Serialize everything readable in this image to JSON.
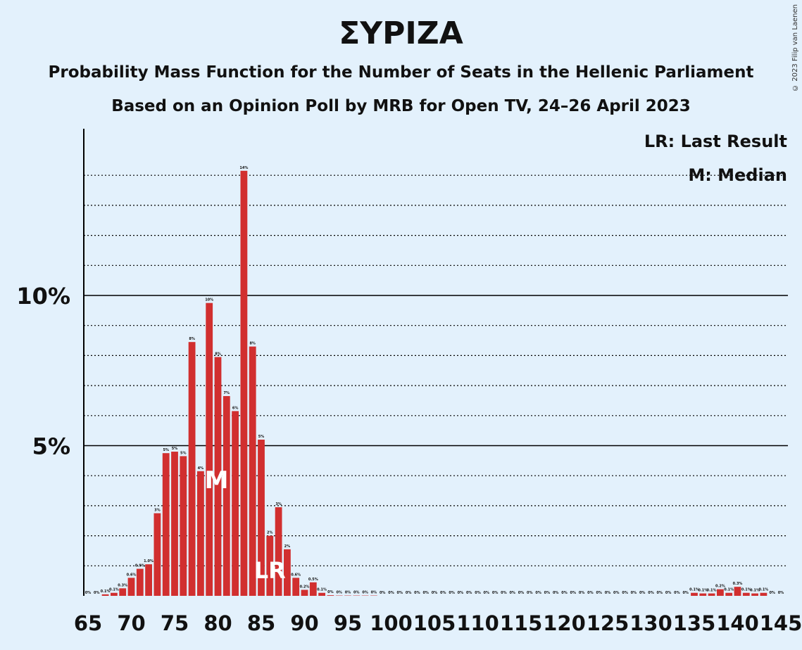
{
  "title": "ΣΥΡΙΖΑ",
  "subtitle1": "Probability Mass Function for the Number of Seats in the Hellenic Parliament",
  "subtitle2": "Based on an Opinion Poll by MRB for Open TV, 24–26 April 2023",
  "copyright": "© 2023 Filip van Laenen",
  "legend": {
    "lr": "LR: Last Result",
    "m": "M: Median"
  },
  "colors": {
    "bar": "#d12f2f",
    "background": "#e3f1fc",
    "axis": "#000000",
    "marker_text": "#ffffff"
  },
  "chart_data": {
    "type": "bar",
    "title": "ΣΥΡΙΖΑ",
    "xlabel": "",
    "ylabel": "",
    "x_range": [
      65,
      145
    ],
    "x_tick_labels": [
      "65",
      "70",
      "75",
      "80",
      "85",
      "90",
      "95",
      "100",
      "105",
      "110",
      "115",
      "120",
      "125",
      "130",
      "135",
      "140",
      "145"
    ],
    "y_tick_labels": [
      "5%",
      "10%"
    ],
    "ylim": [
      0,
      15.5
    ],
    "grid": "dotted every 1%, solid at 5% and 10%",
    "median_seat": 80,
    "median_label": "M",
    "last_result_seat": 86,
    "last_result_label": "LR",
    "seats": [
      65,
      66,
      67,
      68,
      69,
      70,
      71,
      72,
      73,
      74,
      75,
      76,
      77,
      78,
      79,
      80,
      81,
      82,
      83,
      84,
      85,
      86,
      87,
      88,
      89,
      90,
      91,
      92,
      93,
      94,
      95,
      96,
      97,
      98,
      99,
      100,
      101,
      102,
      103,
      104,
      105,
      106,
      107,
      108,
      109,
      110,
      111,
      112,
      113,
      114,
      115,
      116,
      117,
      118,
      119,
      120,
      121,
      122,
      123,
      124,
      125,
      126,
      127,
      128,
      129,
      130,
      131,
      132,
      133,
      134,
      135,
      136,
      137,
      138,
      139,
      140,
      141,
      142,
      143,
      144,
      145
    ],
    "values": [
      0,
      0,
      0.05,
      0.1,
      0.25,
      0.6,
      0.9,
      1.05,
      2.75,
      4.75,
      4.8,
      4.65,
      8.45,
      4.15,
      9.75,
      7.95,
      6.65,
      6.15,
      14.15,
      8.3,
      5.2,
      2.0,
      2.95,
      1.55,
      0.6,
      0.2,
      0.45,
      0.1,
      0.02,
      0.01,
      0.01,
      0.01,
      0.01,
      0.01,
      0,
      0,
      0,
      0,
      0,
      0,
      0,
      0,
      0,
      0,
      0,
      0,
      0,
      0,
      0,
      0,
      0,
      0,
      0,
      0,
      0,
      0,
      0,
      0,
      0,
      0,
      0,
      0,
      0,
      0,
      0,
      0,
      0,
      0,
      0,
      0,
      0.1,
      0.08,
      0.08,
      0.22,
      0.1,
      0.3,
      0.1,
      0.08,
      0.1,
      0,
      0
    ],
    "data_labels": [
      "0%",
      "0%",
      "0.1%",
      "0.1%",
      "0.3%",
      "0.6%",
      "0.9%",
      "1.0%",
      "3%",
      "5%",
      "5%",
      "5%",
      "8%",
      "4%",
      "10%",
      "8%",
      "7%",
      "6%",
      "14%",
      "8%",
      "5%",
      "2%",
      "3%",
      "2%",
      "0.6%",
      "0.2%",
      "0.5%",
      "0.1%",
      "0%",
      "0%",
      "0%",
      "0%",
      "0%",
      "0%",
      "0%",
      "0%",
      "0%",
      "0%",
      "0%",
      "0%",
      "0%",
      "0%",
      "0%",
      "0%",
      "0%",
      "0%",
      "0%",
      "0%",
      "0%",
      "0%",
      "0%",
      "0%",
      "0%",
      "0%",
      "0%",
      "0%",
      "0%",
      "0%",
      "0%",
      "0%",
      "0%",
      "0%",
      "0%",
      "0%",
      "0%",
      "0%",
      "0%",
      "0%",
      "0%",
      "0%",
      "0.1%",
      "0.1%",
      "0.1%",
      "0.2%",
      "0.1%",
      "0.3%",
      "0.1%",
      "0.1%",
      "0.1%",
      "0%",
      "0%"
    ]
  }
}
